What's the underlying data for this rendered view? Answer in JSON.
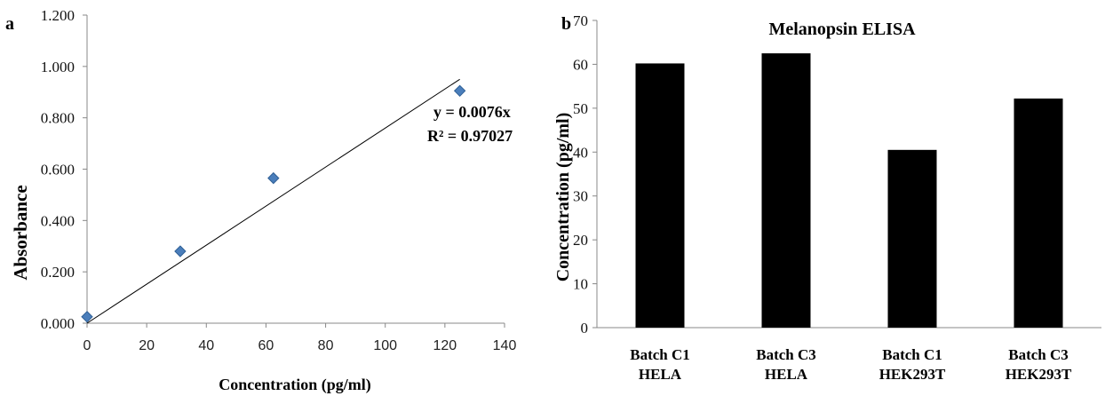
{
  "chart_data": [
    {
      "panel_label": "a",
      "type": "scatter",
      "title": "",
      "xlabel": "Concentration (pg/ml)",
      "ylabel": "Absorbance",
      "xlim": [
        0,
        140
      ],
      "ylim": [
        0,
        1.2
      ],
      "x_ticks": [
        "0",
        "20",
        "40",
        "60",
        "80",
        "100",
        "120",
        "140"
      ],
      "y_ticks": [
        "0.000",
        "0.200",
        "0.400",
        "0.600",
        "0.800",
        "1.000",
        "1.200"
      ],
      "series": [
        {
          "x": [
            0,
            31.25,
            62.5,
            125
          ],
          "y": [
            0.025,
            0.28,
            0.565,
            0.905
          ],
          "color": "#4a7ebb"
        }
      ],
      "trendline": {
        "slope": 0.0076,
        "intercept": 0,
        "x_range": [
          0,
          125
        ]
      },
      "annotations": [
        "y = 0.0076x",
        "R² = 0.97027"
      ],
      "grid": false
    },
    {
      "panel_label": "b",
      "type": "bar",
      "title": "Melanopsin ELISA",
      "xlabel": "",
      "ylabel": "Concentration (pg/ml)",
      "ylim": [
        0,
        70
      ],
      "y_ticks": [
        "0",
        "10",
        "20",
        "30",
        "40",
        "50",
        "60",
        "70"
      ],
      "categories": [
        [
          "Batch C1",
          "HELA"
        ],
        [
          "Batch C3",
          "HELA"
        ],
        [
          "Batch C1",
          "HEK293T"
        ],
        [
          "Batch C3",
          "HEK293T"
        ]
      ],
      "values": [
        60.2,
        62.5,
        40.5,
        52.2
      ],
      "bar_color": "#000000",
      "grid": false
    }
  ]
}
